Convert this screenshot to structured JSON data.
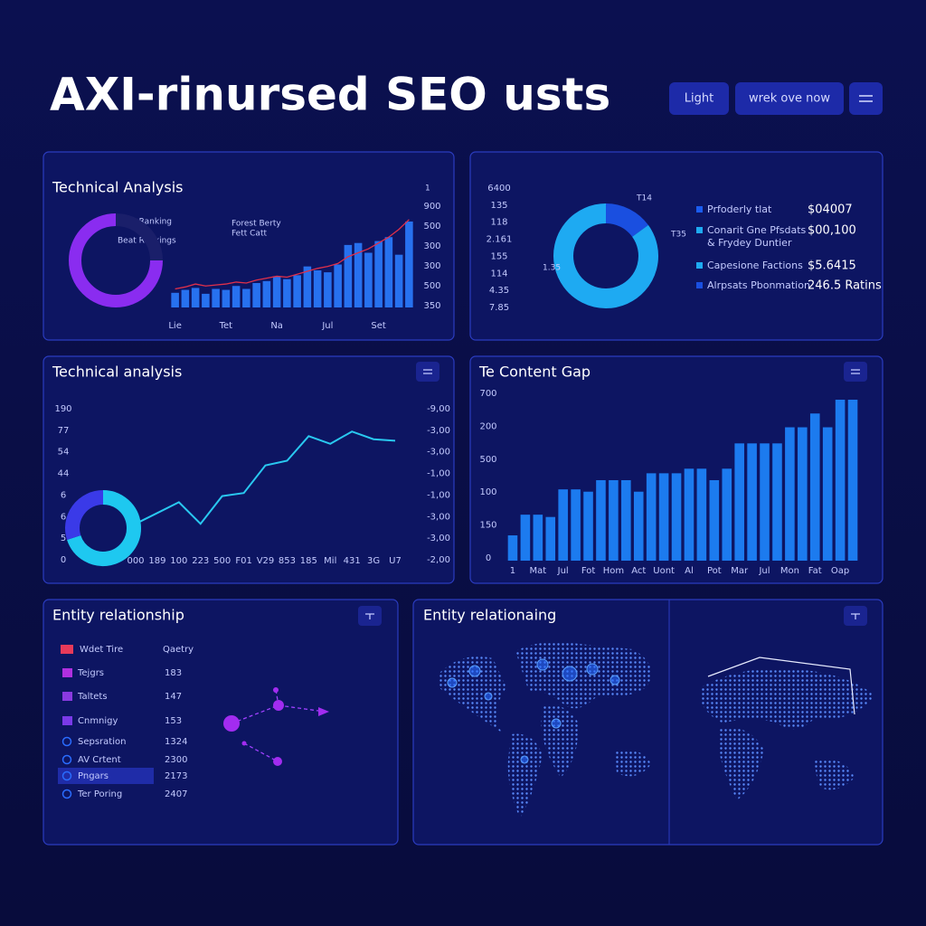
{
  "header": {
    "title": "AXI-rinursed SEO usts",
    "buttons": [
      "Light",
      "wrek ove now"
    ]
  },
  "chart_data": [
    {
      "type": "bar",
      "title": "Technical Analysis",
      "color": "#2a7bff",
      "ylim": [
        0,
        1000
      ],
      "categories": [
        "Lie",
        null,
        null,
        null,
        null,
        "Tet",
        null,
        null,
        null,
        null,
        "Na",
        null,
        null,
        null,
        null,
        "Jul",
        null,
        null,
        null,
        null,
        "Set",
        null,
        null,
        null
      ],
      "values": [
        150,
        180,
        200,
        140,
        190,
        180,
        220,
        190,
        250,
        270,
        320,
        290,
        330,
        420,
        380,
        360,
        440,
        640,
        660,
        560,
        680,
        720,
        540,
        880
      ],
      "line_color": "#e0304a",
      "line_values": [
        190,
        210,
        240,
        220,
        230,
        240,
        260,
        250,
        280,
        300,
        320,
        310,
        340,
        370,
        400,
        420,
        450,
        520,
        560,
        600,
        660,
        720,
        800,
        900
      ],
      "y_axis_texts": [
        "900",
        "500",
        "300",
        "300",
        "500",
        "350"
      ],
      "annotations": [
        "Beat Ranking",
        "Beat Rankings",
        "Forest Berty",
        "Fett Catt",
        "1"
      ]
    },
    {
      "type": "gauge",
      "value": 75,
      "ylim": [
        0,
        100
      ],
      "color": "#8a2cf0"
    },
    {
      "type": "donut",
      "values": [
        15,
        85
      ],
      "colors": [
        "#1a4fe0",
        "#1eaaf2"
      ],
      "y_axis_texts": [
        "6400",
        "135",
        "118",
        "2.161",
        "155",
        "114",
        "4.35",
        "7.85"
      ],
      "annotations": [
        "T14",
        "T35",
        "1.35"
      ],
      "legend": [
        {
          "name": "Prfoderly tlat",
          "color": "#1a5cf0",
          "value_text": "$04007"
        },
        {
          "name": "Conarit Gne Pfsdats",
          "sub": "& Frydey Duntier",
          "color": "#1eaaf2",
          "value_text": "$00,100"
        },
        {
          "name": "Capesione Factions",
          "color": "#1eaaf2",
          "value_text": "$5.6415"
        },
        {
          "name": "Alrpsats Pbonmation",
          "color": "#1a4fe0",
          "value_text": "246.5 Ratins"
        }
      ]
    },
    {
      "type": "line",
      "title": "Technical analysis",
      "color": "#29c8f0",
      "ylim": [
        0,
        100
      ],
      "categories": [
        "000",
        "189",
        "100",
        "223",
        "500",
        "F01",
        "V29",
        "853",
        "185",
        "Mil",
        "431",
        "3G",
        "U7"
      ],
      "values": [
        24,
        31,
        38,
        24,
        42,
        44,
        62,
        65,
        81,
        76,
        84,
        79,
        78
      ],
      "y_axis_texts": [
        "190",
        "77",
        "54",
        "44",
        "6",
        "6",
        "5",
        "0"
      ],
      "y2_axis_texts": [
        "-9,00",
        "-3,00",
        "-3,00",
        "-1,00",
        "-1,00",
        "-3,00",
        "-3,00",
        "-2,00"
      ]
    },
    {
      "type": "donut",
      "values": [
        70,
        30
      ],
      "colors": [
        "#1ec8f0",
        "#3a3ae8"
      ]
    },
    {
      "type": "bar",
      "title": "Te Content Gap",
      "color": "#1e86ff",
      "ylim": [
        0,
        700
      ],
      "categories": [
        "1",
        null,
        "Mat",
        null,
        "Jul",
        null,
        "Fot",
        null,
        "Hom",
        null,
        "Act",
        null,
        "Uont",
        null,
        "Al",
        null,
        "Pot",
        null,
        "Mar",
        null,
        "Jul",
        null,
        "Mon",
        null,
        "Fat",
        null,
        "Oap",
        null
      ],
      "values": [
        110,
        200,
        200,
        190,
        310,
        310,
        300,
        350,
        350,
        350,
        300,
        380,
        380,
        380,
        400,
        400,
        350,
        400,
        510,
        510,
        510,
        510,
        580,
        580,
        640,
        580,
        700,
        700
      ],
      "y_axis_texts": [
        "700",
        "200",
        "500",
        "100",
        "150",
        "0"
      ]
    }
  ],
  "entity_table": {
    "title": "Entity relationship",
    "header": [
      "Wdet Tire",
      "Qaetry"
    ],
    "rows": [
      [
        "Tejgrs",
        "183"
      ],
      [
        "Taltets",
        "147"
      ],
      [
        "Cnmnigy",
        "153"
      ],
      [
        "Sepsration",
        "1324"
      ],
      [
        "AV Crtent",
        "2300"
      ],
      [
        "Pngars",
        "2173"
      ],
      [
        "Ter Poring",
        "2407"
      ]
    ]
  },
  "map_panel": {
    "title": "Entity relationaing"
  }
}
